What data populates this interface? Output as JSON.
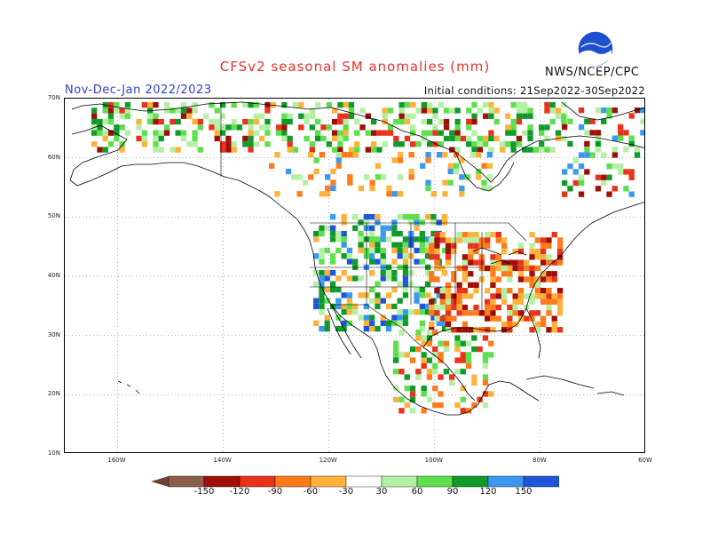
{
  "header": {
    "title": "CFSv2 seasonal SM anomalies (mm)",
    "period": "Nov-Dec-Jan 2022/2023",
    "initial_conditions": "Initial conditions: 21Sep2022-30Sep2022",
    "agency": "NWS/NCEP/CPC",
    "logo_text": "NOAA"
  },
  "axes": {
    "lat_labels": [
      "70N",
      "60N",
      "50N",
      "40N",
      "30N",
      "20N",
      "10N"
    ],
    "lon_labels": [
      "160W",
      "140W",
      "120W",
      "100W",
      "80W",
      "60W"
    ]
  },
  "colorbar": {
    "labels": [
      "-150",
      "-120",
      "-90",
      "-60",
      "-30",
      "30",
      "60",
      "90",
      "120",
      "150"
    ],
    "colors": [
      "#8b5e4b",
      "#a00e08",
      "#e8321a",
      "#ff7a1a",
      "#ffb23a",
      "#ffffff",
      "#b4f0a4",
      "#5ce04c",
      "#0f9a2a",
      "#3b98f0",
      "#1f55d8"
    ]
  },
  "map": {
    "lon_range": [
      -170,
      -60
    ],
    "lat_range": [
      10,
      70
    ],
    "projection": "cylindrical equidistant",
    "grid": "dotted 10-degree graticule"
  }
}
